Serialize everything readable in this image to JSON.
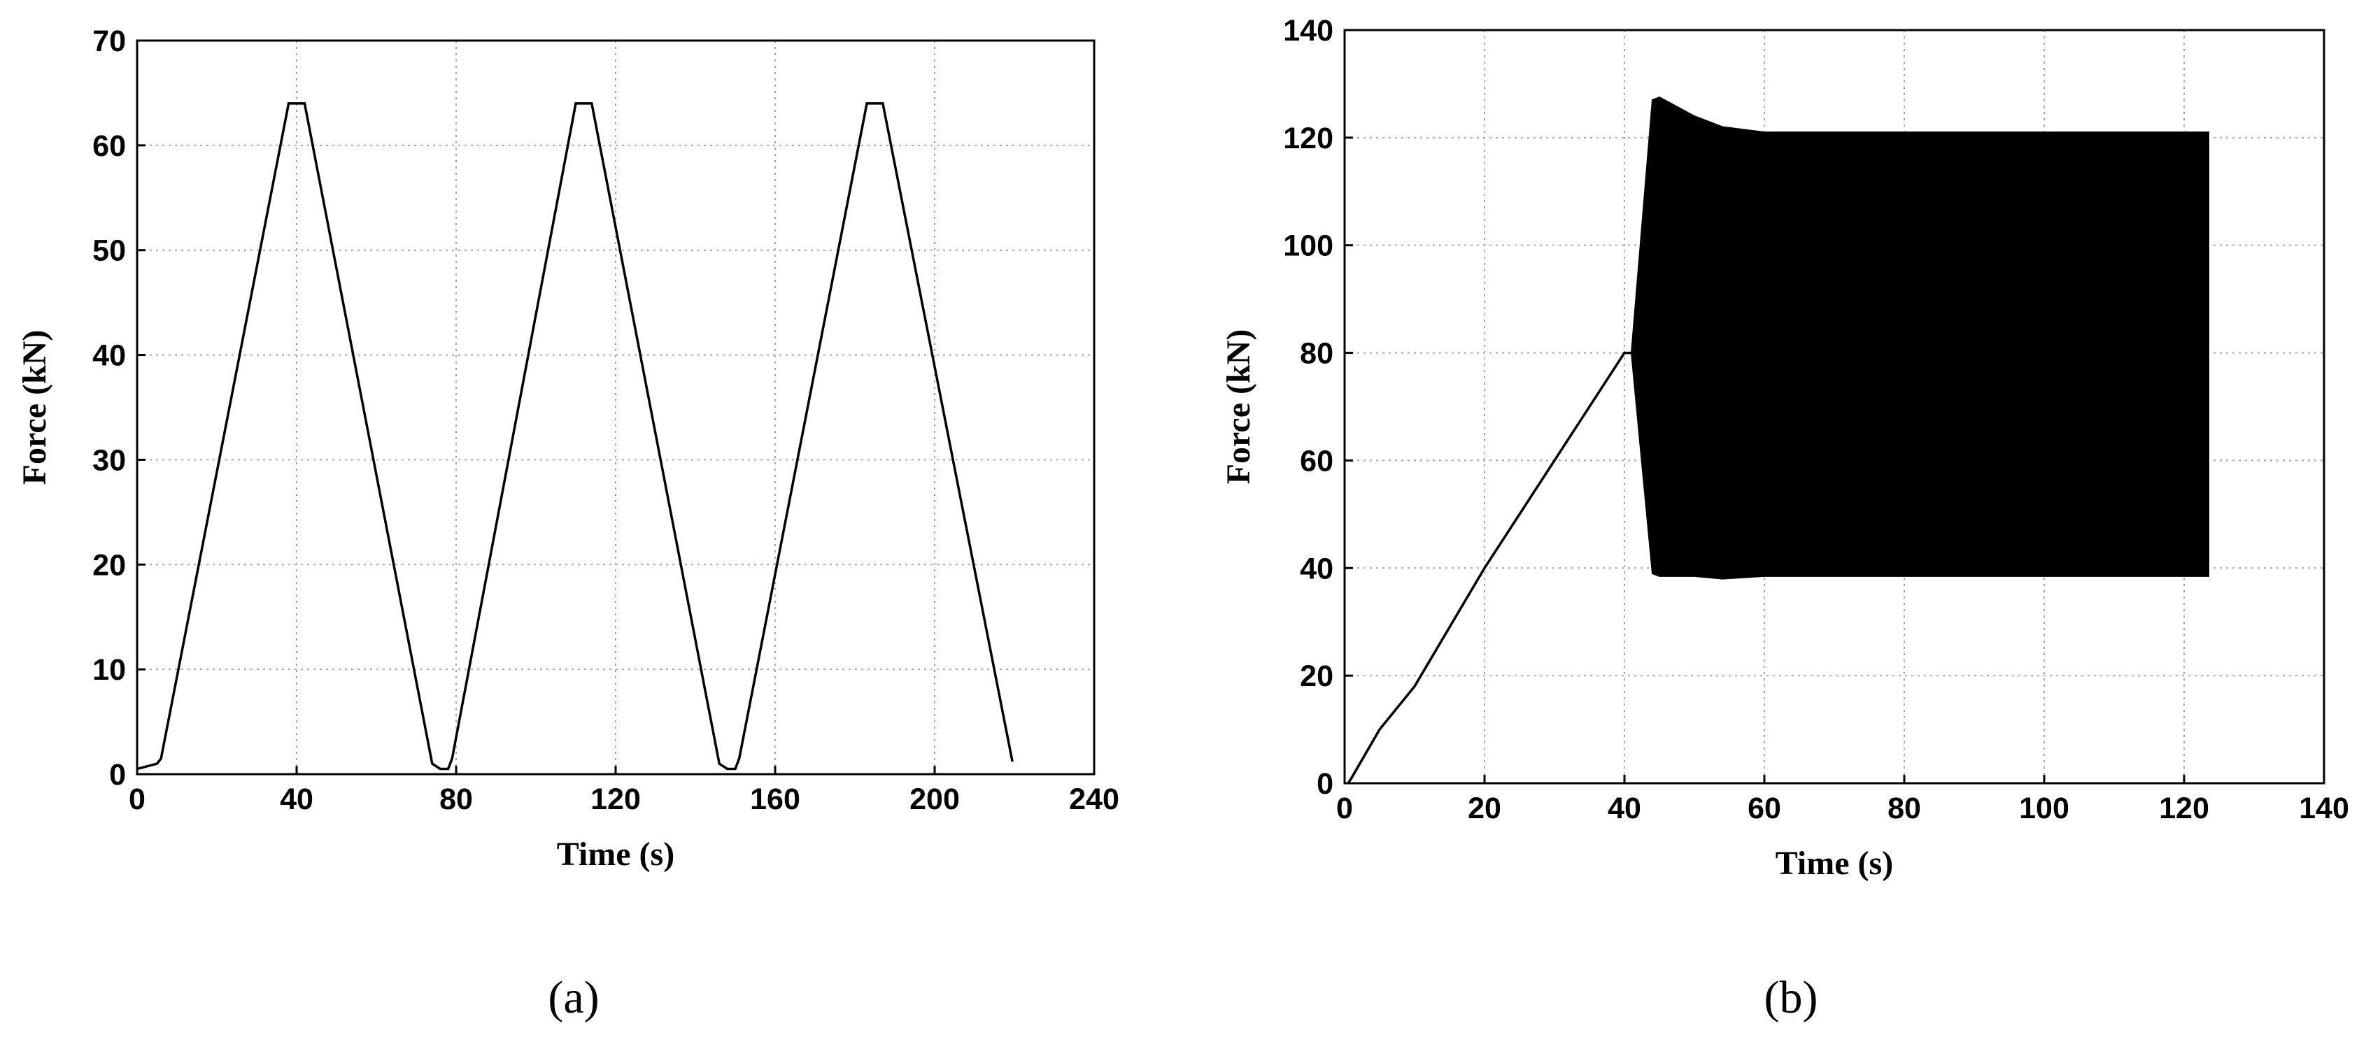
{
  "chart_data": [
    {
      "type": "line",
      "caption": "(a)",
      "xlabel": "Time (s)",
      "ylabel": "Force (kN)",
      "xlim": [
        0,
        240
      ],
      "xticks": [
        0,
        40,
        80,
        120,
        160,
        200,
        240
      ],
      "ylim": [
        0,
        70
      ],
      "yticks": [
        0,
        10,
        20,
        30,
        40,
        50,
        60,
        70
      ],
      "grid": true,
      "series": [
        {
          "color": "#000000",
          "x": [
            0,
            5,
            6,
            38,
            42,
            74,
            76,
            78,
            79,
            110,
            114,
            146,
            148,
            150,
            151,
            183,
            187,
            219.5
          ],
          "values": [
            0.5,
            1,
            1.5,
            64,
            64,
            1,
            0.5,
            0.5,
            1.5,
            64,
            64,
            1,
            0.5,
            0.5,
            1.5,
            64,
            64,
            1.2
          ]
        }
      ]
    },
    {
      "type": "line",
      "caption": "(b)",
      "xlabel": "Time (s)",
      "ylabel": "Force (kN)",
      "xlim": [
        0,
        140
      ],
      "xticks": [
        0,
        20,
        40,
        60,
        80,
        100,
        120,
        140
      ],
      "ylim": [
        0,
        140
      ],
      "yticks": [
        0,
        20,
        40,
        60,
        80,
        100,
        120,
        140
      ],
      "grid": true,
      "series": [
        {
          "color": "#000000",
          "x": [
            0.5,
            1,
            5,
            10,
            20,
            30,
            40,
            41
          ],
          "values": [
            0,
            1,
            10,
            18,
            40,
            60,
            80,
            80
          ]
        }
      ],
      "band": {
        "color": "#000000",
        "x": [
          41,
          44,
          45,
          50,
          54,
          60,
          80,
          100,
          123.5
        ],
        "upper": [
          80,
          127,
          127.5,
          124,
          122,
          121,
          121,
          121,
          121
        ],
        "lower": [
          80,
          39,
          38.5,
          38.5,
          38,
          38.5,
          38.5,
          38.5,
          38.5
        ]
      }
    }
  ]
}
